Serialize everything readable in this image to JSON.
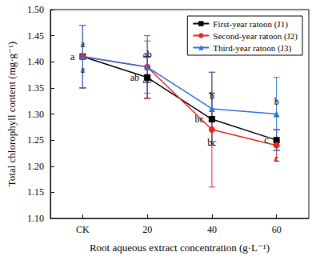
{
  "chart_data": {
    "type": "line",
    "x_label": "Root aqueous extract concentration (g·L⁻¹)",
    "y_label": "Total chlorophyll content (mg·g⁻¹)",
    "categories": [
      "CK",
      "20",
      "40",
      "60"
    ],
    "series": [
      {
        "name": "First-year ratoon (J1)",
        "color": "#000000",
        "marker": "square",
        "values": [
          1.41,
          1.37,
          1.29,
          1.25
        ],
        "errors": [
          0.06,
          0.04,
          0.05,
          0.02
        ],
        "letters": [
          "a",
          "ab",
          "bc",
          "c"
        ]
      },
      {
        "name": "Second-year ratoon (J2)",
        "color": "#e8231f",
        "marker": "circle",
        "values": [
          1.41,
          1.39,
          1.27,
          1.24
        ],
        "errors": [
          0.06,
          0.06,
          0.11,
          0.03
        ],
        "letters": [
          "a",
          "ab",
          "bc",
          "c"
        ]
      },
      {
        "name": "Third-year ratoon (J3)",
        "color": "#2a6fdb",
        "marker": "triangle",
        "values": [
          1.41,
          1.39,
          1.31,
          1.3
        ],
        "errors": [
          0.06,
          0.05,
          0.07,
          0.07
        ],
        "letters": [
          "a",
          "ab",
          "b",
          "b"
        ]
      }
    ],
    "ylim": [
      1.1,
      1.5
    ],
    "yticks": [
      {
        "value": 1.1,
        "label": "1.10"
      },
      1.15,
      {
        "value": 1.2,
        "label": "1.20"
      },
      1.25,
      {
        "value": 1.3,
        "label": "1.30"
      },
      1.35,
      {
        "value": 1.4,
        "label": "1.40"
      },
      1.45,
      {
        "value": 1.5,
        "label": "1.50"
      }
    ],
    "grid": false,
    "legend": "upper right"
  }
}
